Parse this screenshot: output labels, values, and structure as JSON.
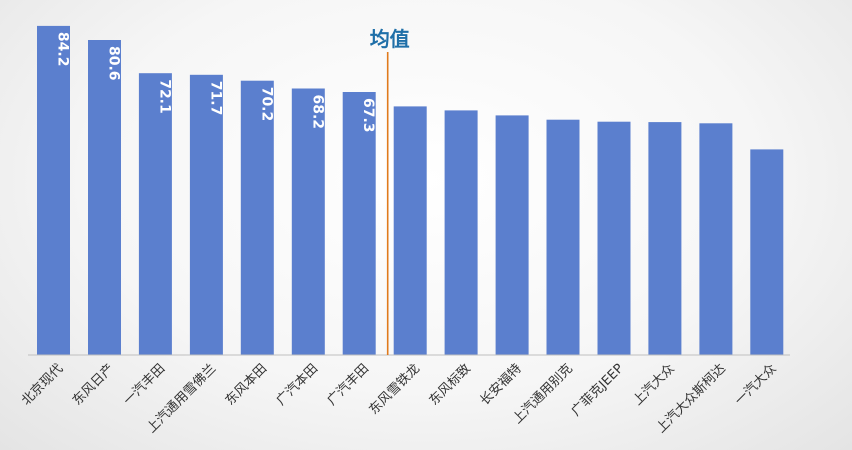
{
  "chart_data": {
    "type": "bar",
    "categories": [
      "北京现代",
      "东风日产",
      "一汽丰田",
      "上汽通用雪佛兰",
      "东风本田",
      "广汽本田",
      "广汽丰田",
      "东风雪铁龙",
      "东风标致",
      "长安福特",
      "上汽通用别克",
      "广菲克JEEP",
      "上汽大众",
      "上汽大众斯柯达",
      "一汽大众"
    ],
    "values": [
      84.2,
      80.6,
      72.1,
      71.7,
      70.2,
      68.2,
      67.3,
      63.6,
      62.6,
      61.3,
      60.2,
      59.7,
      59.6,
      59.3,
      52.6
    ],
    "value_labels": [
      "84.2",
      "80.6",
      "72.1",
      "71.7",
      "70.2",
      "68.2",
      "67.3",
      "",
      "",
      "",
      "",
      "",
      "",
      "",
      ""
    ],
    "mean_label": "均值",
    "title": "",
    "xlabel": "",
    "ylabel": "",
    "ylim": [
      0,
      87
    ],
    "grid": false,
    "bar_color": "#5b7fce",
    "mean_line_color": "#e07a1c",
    "mean_label_color": "#1f6fa8"
  }
}
